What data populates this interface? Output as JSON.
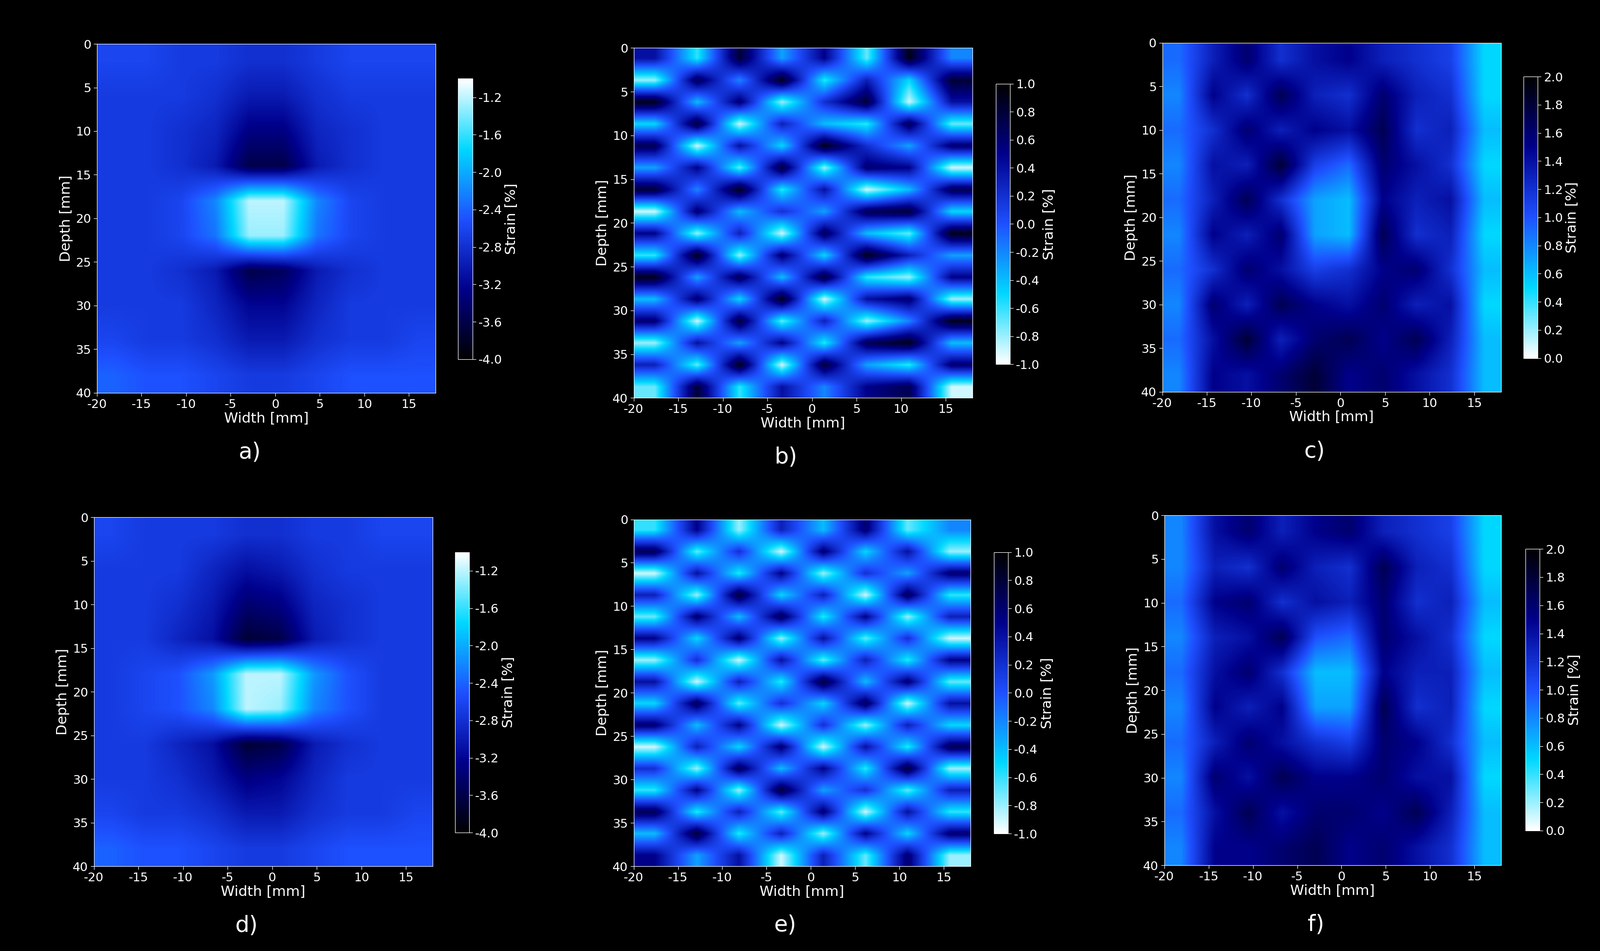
{
  "chart_data": [
    {
      "type": "heatmap",
      "title": "a)",
      "xlabel": "Width [mm]",
      "ylabel": "Depth [mm]",
      "xlim": [
        -20,
        18
      ],
      "ylim": [
        40,
        0
      ],
      "xticks": [
        -20,
        -15,
        -10,
        -5,
        0,
        5,
        10,
        15
      ],
      "yticks": [
        0,
        5,
        10,
        15,
        20,
        25,
        30,
        35,
        40
      ],
      "colorbar_label": "Strain [%]",
      "colorbar_range": [
        -4.0,
        -1.0
      ],
      "colorbar_ticks": [
        -1.2,
        -1.6,
        -2.0,
        -2.4,
        -2.8,
        -3.2,
        -3.6,
        -4.0
      ],
      "color": [
        "#000000",
        "#00008b",
        "#1e50ff",
        "#00d8ff",
        "#ffffff"
      ],
      "cells": [
        [
          -2.6,
          -2.6,
          -2.7,
          -2.7,
          -2.8,
          -2.8,
          -2.7,
          -2.6,
          -2.6,
          -2.6
        ],
        [
          -2.7,
          -2.7,
          -2.7,
          -2.8,
          -3.0,
          -3.0,
          -2.8,
          -2.7,
          -2.7,
          -2.7
        ],
        [
          -2.7,
          -2.7,
          -2.8,
          -2.9,
          -3.3,
          -3.3,
          -2.9,
          -2.8,
          -2.7,
          -2.7
        ],
        [
          -2.7,
          -2.7,
          -2.8,
          -3.0,
          -3.6,
          -3.6,
          -3.0,
          -2.8,
          -2.7,
          -2.7
        ],
        [
          -2.7,
          -2.7,
          -2.6,
          -2.2,
          -1.2,
          -1.2,
          -2.2,
          -2.6,
          -2.7,
          -2.7
        ],
        [
          -2.7,
          -2.7,
          -2.6,
          -2.3,
          -1.3,
          -1.3,
          -2.3,
          -2.6,
          -2.7,
          -2.7
        ],
        [
          -2.7,
          -2.7,
          -2.8,
          -3.0,
          -3.6,
          -3.5,
          -3.0,
          -2.8,
          -2.7,
          -2.7
        ],
        [
          -2.7,
          -2.7,
          -2.7,
          -2.9,
          -3.2,
          -3.2,
          -2.9,
          -2.7,
          -2.7,
          -2.7
        ],
        [
          -2.6,
          -2.7,
          -2.7,
          -2.8,
          -3.0,
          -3.0,
          -2.8,
          -2.7,
          -2.7,
          -2.6
        ],
        [
          -2.4,
          -2.5,
          -2.5,
          -2.6,
          -2.7,
          -2.7,
          -2.6,
          -2.5,
          -2.5,
          -2.5
        ]
      ]
    },
    {
      "type": "heatmap",
      "title": "b)",
      "xlabel": "Width [mm]",
      "ylabel": "Depth [mm]",
      "xlim": [
        -20,
        18
      ],
      "ylim": [
        40,
        0
      ],
      "xticks": [
        -20,
        -15,
        -10,
        -5,
        0,
        5,
        10,
        15
      ],
      "yticks": [
        0,
        5,
        10,
        15,
        20,
        25,
        30,
        35,
        40
      ],
      "colorbar_label": "Strain [%]",
      "colorbar_range": [
        -1.0,
        1.0
      ],
      "colorbar_ticks": [
        1.0,
        0.8,
        0.6,
        0.4,
        0.2,
        0.0,
        -0.2,
        -0.4,
        -0.6,
        -0.8,
        -1.0
      ],
      "color": [
        "#ffffff",
        "#00d8ff",
        "#1e50ff",
        "#00008b",
        "#000000"
      ],
      "cells": [
        [
          0.4,
          -0.6,
          0.8,
          -0.3,
          0.5,
          -0.7,
          0.9,
          -0.2
        ],
        [
          -0.8,
          0.7,
          -0.2,
          0.9,
          -0.6,
          0.3,
          -0.5,
          0.8
        ],
        [
          0.9,
          -0.4,
          0.6,
          -0.8,
          0.2,
          0.8,
          -0.9,
          0.4
        ],
        [
          -0.5,
          0.8,
          -0.9,
          0.3,
          -0.4,
          -0.6,
          0.7,
          -0.7
        ],
        [
          0.7,
          -0.9,
          0.4,
          -0.5,
          0.9,
          0.2,
          -0.3,
          0.6
        ],
        [
          -0.3,
          0.5,
          -0.7,
          0.8,
          -0.8,
          0.6,
          0.5,
          -0.9
        ],
        [
          0.8,
          -0.2,
          0.9,
          -0.6,
          0.4,
          -0.9,
          -0.4,
          0.7
        ],
        [
          -0.9,
          0.6,
          -0.4,
          0.2,
          -0.3,
          0.7,
          0.8,
          -0.5
        ],
        [
          0.5,
          -0.8,
          0.3,
          -0.9,
          0.7,
          -0.4,
          -0.7,
          0.9
        ],
        [
          -0.6,
          0.9,
          -0.8,
          0.6,
          -0.5,
          0.9,
          0.3,
          -0.3
        ],
        [
          0.9,
          -0.3,
          0.7,
          -0.4,
          0.8,
          -0.6,
          -0.8,
          0.5
        ],
        [
          -0.4,
          0.6,
          -0.5,
          0.9,
          -0.9,
          0.4,
          0.6,
          -0.8
        ],
        [
          0.6,
          -0.9,
          0.8,
          -0.7,
          0.3,
          -0.8,
          -0.2,
          0.9
        ],
        [
          -0.8,
          0.4,
          -0.3,
          0.5,
          -0.6,
          0.7,
          0.9,
          -0.4
        ],
        [
          0.3,
          -0.7,
          0.9,
          -0.9,
          0.8,
          -0.3,
          -0.6,
          0.6
        ],
        [
          -0.7,
          0.8,
          -0.6,
          0.4,
          -0.2,
          0.5,
          0.7,
          -0.9
        ]
      ]
    },
    {
      "type": "heatmap",
      "title": "c)",
      "xlabel": "Width [mm]",
      "ylabel": "Depth [mm]",
      "xlim": [
        -20,
        18
      ],
      "ylim": [
        40,
        0
      ],
      "xticks": [
        -20,
        -15,
        -10,
        -5,
        0,
        5,
        10,
        15
      ],
      "yticks": [
        0,
        5,
        10,
        15,
        20,
        25,
        30,
        35,
        40
      ],
      "colorbar_label": "Strain [%]",
      "colorbar_range": [
        0.0,
        2.0
      ],
      "colorbar_ticks": [
        2.0,
        1.8,
        1.6,
        1.4,
        1.2,
        1.0,
        0.8,
        0.6,
        0.4,
        0.2,
        0.0
      ],
      "color": [
        "#ffffff",
        "#00d8ff",
        "#1e50ff",
        "#00008b",
        "#000000"
      ],
      "cells": [
        [
          0.9,
          1.3,
          1.6,
          1.2,
          1.4,
          1.5,
          1.3,
          1.2,
          1.1,
          0.5
        ],
        [
          0.8,
          1.5,
          1.2,
          1.7,
          1.3,
          1.2,
          1.6,
          1.3,
          1.2,
          0.5
        ],
        [
          0.9,
          1.2,
          1.6,
          1.3,
          1.5,
          1.4,
          1.7,
          1.2,
          1.3,
          0.6
        ],
        [
          0.8,
          1.4,
          1.3,
          1.8,
          1.1,
          0.9,
          1.6,
          1.4,
          1.2,
          0.5
        ],
        [
          0.9,
          1.3,
          1.7,
          1.2,
          0.7,
          0.6,
          1.5,
          1.3,
          1.4,
          0.6
        ],
        [
          0.8,
          1.5,
          1.3,
          1.6,
          0.7,
          0.6,
          1.7,
          1.2,
          1.3,
          0.5
        ],
        [
          0.9,
          1.2,
          1.6,
          1.4,
          1.1,
          1.2,
          1.5,
          1.6,
          1.2,
          0.6
        ],
        [
          0.8,
          1.6,
          1.3,
          1.7,
          1.5,
          1.4,
          1.6,
          1.3,
          1.4,
          0.5
        ],
        [
          0.9,
          1.4,
          1.8,
          1.3,
          1.6,
          1.7,
          1.5,
          1.7,
          1.3,
          0.6
        ],
        [
          0.8,
          1.5,
          1.4,
          1.6,
          1.8,
          1.5,
          1.6,
          1.4,
          1.2,
          0.6
        ]
      ]
    },
    {
      "type": "heatmap",
      "title": "d)",
      "xlabel": "Width [mm]",
      "ylabel": "Depth [mm]",
      "xlim": [
        -20,
        18
      ],
      "ylim": [
        40,
        0
      ],
      "xticks": [
        -20,
        -15,
        -10,
        -5,
        0,
        5,
        10,
        15
      ],
      "yticks": [
        0,
        5,
        10,
        15,
        20,
        25,
        30,
        35,
        40
      ],
      "colorbar_label": "Strain [%]",
      "colorbar_range": [
        -4.0,
        -1.0
      ],
      "colorbar_ticks": [
        -1.2,
        -1.6,
        -2.0,
        -2.4,
        -2.8,
        -3.2,
        -3.6,
        -4.0
      ],
      "color": [
        "#000000",
        "#00008b",
        "#1e50ff",
        "#00d8ff",
        "#ffffff"
      ],
      "cells": [
        [
          -2.6,
          -2.7,
          -2.7,
          -2.7,
          -2.8,
          -2.8,
          -2.7,
          -2.7,
          -2.6,
          -2.6
        ],
        [
          -2.7,
          -2.7,
          -2.7,
          -2.9,
          -3.1,
          -3.0,
          -2.8,
          -2.7,
          -2.7,
          -2.7
        ],
        [
          -2.7,
          -2.7,
          -2.8,
          -3.0,
          -3.4,
          -3.3,
          -2.9,
          -2.8,
          -2.7,
          -2.7
        ],
        [
          -2.7,
          -2.7,
          -2.9,
          -3.1,
          -3.7,
          -3.6,
          -3.0,
          -2.8,
          -2.7,
          -2.7
        ],
        [
          -2.7,
          -2.6,
          -2.5,
          -2.1,
          -1.2,
          -1.2,
          -2.1,
          -2.5,
          -2.7,
          -2.7
        ],
        [
          -2.7,
          -2.6,
          -2.5,
          -2.2,
          -1.2,
          -1.3,
          -2.2,
          -2.5,
          -2.7,
          -2.7
        ],
        [
          -2.7,
          -2.7,
          -2.9,
          -3.1,
          -3.7,
          -3.6,
          -3.0,
          -2.8,
          -2.7,
          -2.7
        ],
        [
          -2.7,
          -2.7,
          -2.8,
          -3.0,
          -3.3,
          -3.2,
          -2.9,
          -2.7,
          -2.7,
          -2.7
        ],
        [
          -2.6,
          -2.7,
          -2.7,
          -2.8,
          -3.0,
          -3.0,
          -2.8,
          -2.7,
          -2.7,
          -2.6
        ],
        [
          -2.4,
          -2.5,
          -2.5,
          -2.6,
          -2.7,
          -2.7,
          -2.6,
          -2.5,
          -2.5,
          -2.5
        ]
      ]
    },
    {
      "type": "heatmap",
      "title": "e)",
      "xlabel": "Width [mm]",
      "ylabel": "Depth [mm]",
      "xlim": [
        -20,
        18
      ],
      "ylim": [
        40,
        0
      ],
      "xticks": [
        -20,
        -15,
        -10,
        -5,
        0,
        5,
        10,
        15
      ],
      "yticks": [
        0,
        5,
        10,
        15,
        20,
        25,
        30,
        35,
        40
      ],
      "colorbar_label": "Strain [%]",
      "colorbar_range": [
        -1.0,
        1.0
      ],
      "colorbar_ticks": [
        1.0,
        0.8,
        0.6,
        0.4,
        0.2,
        0.0,
        -0.2,
        -0.4,
        -0.6,
        -0.8,
        -1.0
      ],
      "color": [
        "#ffffff",
        "#00d8ff",
        "#1e50ff",
        "#00008b",
        "#000000"
      ],
      "cells": [
        [
          -0.6,
          0.5,
          -0.8,
          0.3,
          -0.4,
          0.6,
          -0.7,
          -0.2
        ],
        [
          0.7,
          -0.7,
          0.2,
          -0.9,
          0.6,
          -0.5,
          0.4,
          -0.8
        ],
        [
          -0.9,
          0.4,
          -0.6,
          0.5,
          -0.8,
          0.2,
          -0.3,
          0.6
        ],
        [
          0.3,
          -0.8,
          0.8,
          -0.5,
          0.3,
          -0.9,
          0.7,
          -0.6
        ],
        [
          -0.7,
          0.6,
          -0.4,
          0.7,
          -0.6,
          0.5,
          -0.8,
          0.3
        ],
        [
          0.5,
          -0.5,
          0.6,
          -0.8,
          0.4,
          -0.7,
          0.2,
          -0.9
        ],
        [
          -0.8,
          0.2,
          -0.9,
          0.4,
          -0.7,
          0.3,
          -0.6,
          0.5
        ],
        [
          0.4,
          -0.9,
          0.3,
          -0.6,
          0.8,
          -0.4,
          0.6,
          -0.7
        ],
        [
          -0.5,
          0.7,
          -0.7,
          0.2,
          -0.5,
          0.7,
          -0.9,
          0.4
        ],
        [
          0.6,
          -0.4,
          0.5,
          -0.9,
          0.2,
          -0.8,
          0.3,
          -0.5
        ],
        [
          -0.9,
          0.3,
          -0.5,
          0.6,
          -0.9,
          0.4,
          -0.6,
          0.7
        ],
        [
          0.2,
          -0.8,
          0.7,
          -0.4,
          0.5,
          -0.6,
          0.8,
          -0.8
        ],
        [
          -0.6,
          0.5,
          -0.8,
          0.8,
          -0.3,
          0.2,
          -0.7,
          0.3
        ],
        [
          0.7,
          -0.6,
          0.3,
          -0.7,
          0.6,
          -0.9,
          0.4,
          -0.6
        ],
        [
          -0.4,
          0.8,
          -0.6,
          0.3,
          -0.8,
          0.5,
          -0.5,
          0.6
        ],
        [
          0.5,
          -0.3,
          0.4,
          -0.9,
          0.3,
          -0.7,
          0.6,
          -0.8
        ]
      ]
    },
    {
      "type": "heatmap",
      "title": "f)",
      "xlabel": "Width [mm]",
      "ylabel": "Depth [mm]",
      "xlim": [
        -20,
        18
      ],
      "ylim": [
        40,
        0
      ],
      "xticks": [
        -20,
        -15,
        -10,
        -5,
        0,
        5,
        10,
        15
      ],
      "yticks": [
        0,
        5,
        10,
        15,
        20,
        25,
        30,
        35,
        40
      ],
      "colorbar_label": "Strain [%]",
      "colorbar_range": [
        0.0,
        2.0
      ],
      "colorbar_ticks": [
        2.0,
        1.8,
        1.6,
        1.4,
        1.2,
        1.0,
        0.8,
        0.6,
        0.4,
        0.2,
        0.0
      ],
      "color": [
        "#ffffff",
        "#00d8ff",
        "#1e50ff",
        "#00008b",
        "#000000"
      ],
      "cells": [
        [
          0.8,
          1.4,
          1.6,
          1.3,
          1.5,
          1.6,
          1.3,
          1.2,
          1.1,
          0.5
        ],
        [
          0.8,
          1.3,
          1.2,
          1.6,
          1.3,
          1.2,
          1.7,
          1.3,
          1.2,
          0.5
        ],
        [
          0.9,
          1.5,
          1.6,
          1.2,
          1.4,
          1.3,
          1.6,
          1.2,
          1.3,
          0.6
        ],
        [
          0.8,
          1.3,
          1.4,
          1.7,
          1.0,
          0.9,
          1.6,
          1.4,
          1.2,
          0.5
        ],
        [
          0.9,
          1.4,
          1.6,
          1.2,
          0.6,
          0.6,
          1.5,
          1.3,
          1.3,
          0.6
        ],
        [
          0.8,
          1.5,
          1.3,
          1.5,
          0.7,
          0.7,
          1.7,
          1.2,
          1.3,
          0.5
        ],
        [
          0.9,
          1.3,
          1.6,
          1.4,
          1.2,
          1.1,
          1.6,
          1.5,
          1.2,
          0.6
        ],
        [
          0.8,
          1.6,
          1.4,
          1.7,
          1.5,
          1.5,
          1.6,
          1.4,
          1.4,
          0.5
        ],
        [
          0.9,
          1.4,
          1.7,
          1.4,
          1.6,
          1.6,
          1.5,
          1.7,
          1.3,
          0.6
        ],
        [
          0.8,
          1.5,
          1.5,
          1.6,
          1.7,
          1.5,
          1.6,
          1.4,
          1.2,
          0.6
        ]
      ]
    }
  ]
}
